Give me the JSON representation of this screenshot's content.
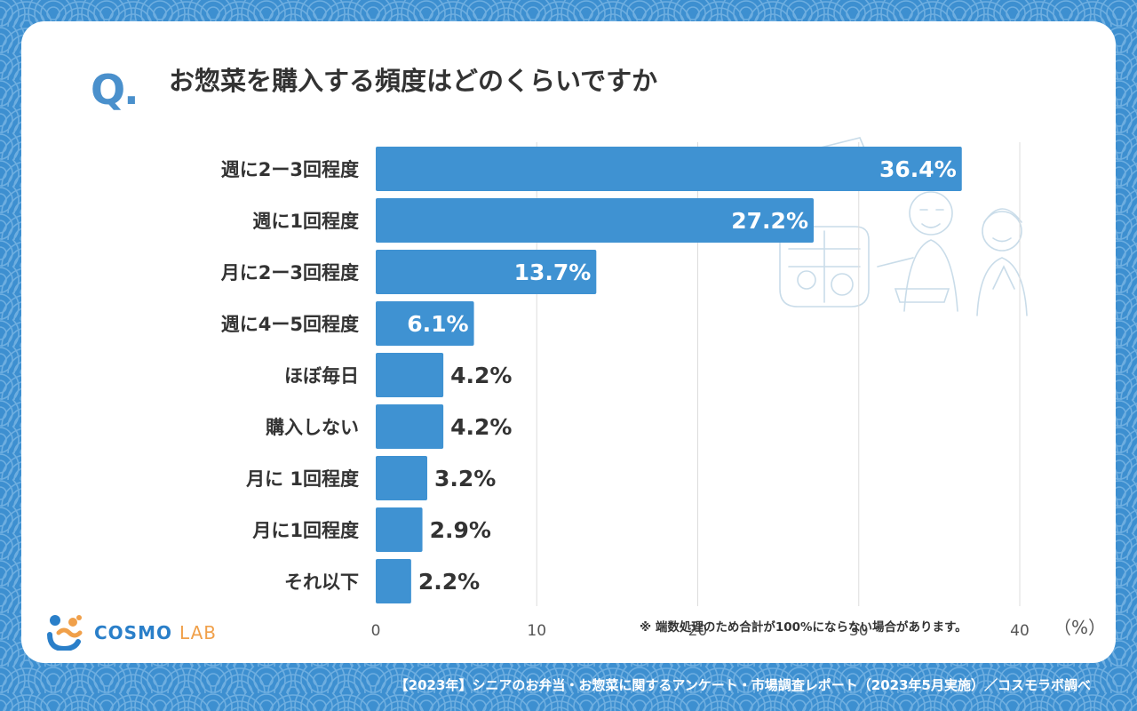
{
  "header": {
    "q_mark": "Q.",
    "question": "お惣菜を購入する頻度はどのくらいですか"
  },
  "chart_data": {
    "type": "bar",
    "orientation": "horizontal",
    "title": "お惣菜を購入する頻度はどのくらいですか",
    "categories": [
      "週に2ー3回程度",
      "週に1回程度",
      "月に2ー3回程度",
      "週に4ー5回程度",
      "ほぼ毎日",
      "購入しない",
      "月に 1回程度",
      "月に1回程度",
      "それ以下"
    ],
    "values": [
      36.4,
      27.2,
      13.7,
      6.1,
      4.2,
      4.2,
      3.2,
      2.9,
      2.2
    ],
    "value_labels": [
      "36.4%",
      "27.2%",
      "13.7%",
      "6.1%",
      "4.2%",
      "4.2%",
      "3.2%",
      "2.9%",
      "2.2%"
    ],
    "x_ticks": [
      "0",
      "10",
      "20",
      "30",
      "40"
    ],
    "xlim": [
      0,
      40
    ],
    "grid": true,
    "unit_label": "（%）",
    "bar_color": "#3f92d2"
  },
  "notes": {
    "rounding": "※ 端数処理のため合計が100%にならない場合があります。"
  },
  "logo": {
    "main": "COSMO",
    "sub": "LAB"
  },
  "footer": {
    "source": "【2023年】シニアのお弁当・お惣菜に関するアンケート・市場調査レポート（2023年5月実施）／コスモラボ調べ"
  },
  "colors": {
    "background": "#3d8fd0",
    "card": "#ffffff",
    "accent": "#4a90cc",
    "bar": "#3f92d2",
    "text": "#333333"
  }
}
